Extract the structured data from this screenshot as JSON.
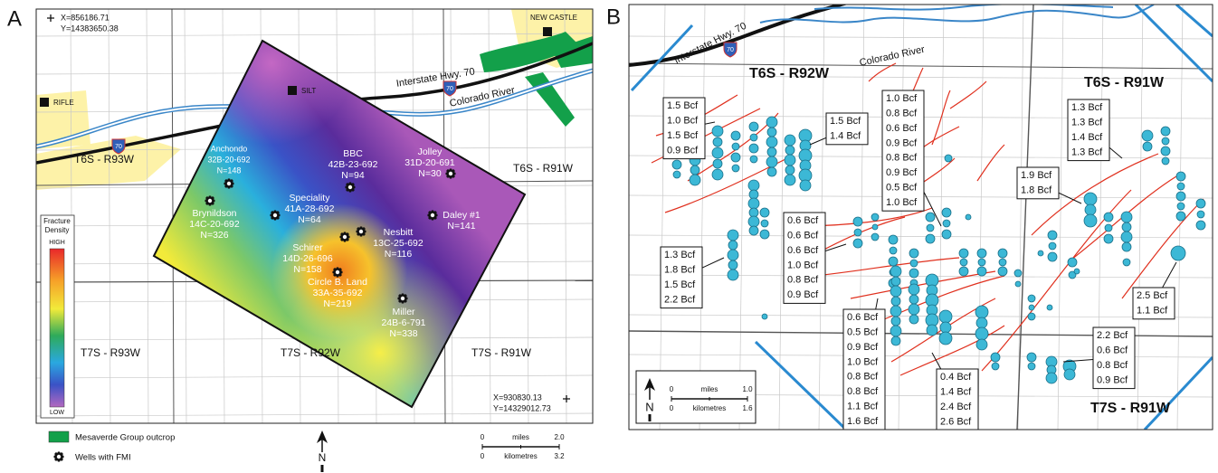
{
  "panel_a": {
    "label": "A",
    "coord_top": [
      "X=856186.71",
      "Y=14383650.38"
    ],
    "coord_bottom": [
      "X=930830.13",
      "Y=14329012.73"
    ],
    "towns": [
      "NEW CASTLE",
      "SILT",
      "RIFLE"
    ],
    "highway": "Interstate Hwy. 70",
    "shield": "70",
    "river": "Colorado River",
    "townships": [
      "T6S - R93W",
      "T6S - R91W",
      "T7S - R93W",
      "T7S - R92W",
      "T7S - R91W"
    ],
    "wells": [
      {
        "lines": [
          "Anchondo",
          "32B-20-692",
          "N=148"
        ]
      },
      {
        "lines": [
          "BBC",
          "42B-23-692",
          "N=94"
        ]
      },
      {
        "lines": [
          "Jolley",
          "31D-20-691",
          "N=30"
        ]
      },
      {
        "lines": [
          "Speciality",
          "41A-28-692",
          "N=64"
        ]
      },
      {
        "lines": [
          "Brynildson",
          "14C-20-692",
          "N=326"
        ]
      },
      {
        "lines": [
          "Daley #1",
          "N=141"
        ]
      },
      {
        "lines": [
          "Nesbitt",
          "13C-25-692",
          "N=116"
        ]
      },
      {
        "lines": [
          "Schirer",
          "14D-26-696",
          "N=158"
        ]
      },
      {
        "lines": [
          "Circle B. Land",
          "33A-35-692",
          "N=219"
        ]
      },
      {
        "lines": [
          "Miller",
          "24B-6-791",
          "N=338"
        ]
      }
    ],
    "density_legend": {
      "title": [
        "Fracture",
        "Density"
      ],
      "high": "HIGH",
      "low": "LOW"
    },
    "legend": [
      "Mesaverde Group outcrop",
      "Wells with FMI"
    ],
    "scale": {
      "miles": [
        "0",
        "miles",
        "2.0"
      ],
      "km": [
        "0",
        "kilometres",
        "3.2"
      ]
    },
    "north": "N"
  },
  "panel_b": {
    "label": "B",
    "highway": "Interstate Hwy. 70",
    "shield": "70",
    "river": "Colorado River",
    "townships": [
      "T6S - R92W",
      "T6S - R91W",
      "T7S - R91W"
    ],
    "boxes": [
      [
        "1.5 Bcf",
        "1.0 Bcf",
        "1.5 Bcf",
        "0.9 Bcf"
      ],
      [
        "1.5 Bcf",
        "1.4 Bcf"
      ],
      [
        "1.0 Bcf",
        "0.8 Bcf",
        "0.6 Bcf",
        "0.9 Bcf",
        "0.8 Bcf",
        "0.9 Bcf",
        "0.5 Bcf",
        "1.0 Bcf"
      ],
      [
        "1.3 Bcf",
        "1.3 Bcf",
        "1.4 Bcf",
        "1.3 Bcf"
      ],
      [
        "1.9 Bcf",
        "1.8 Bcf"
      ],
      [
        "0.6 Bcf",
        "0.6 Bcf",
        "0.6 Bcf",
        "1.0 Bcf",
        "0.8 Bcf",
        "0.9 Bcf"
      ],
      [
        "1.3 Bcf",
        "1.8 Bcf",
        "1.5 Bcf",
        "2.2 Bcf"
      ],
      [
        "2.5 Bcf",
        "1.1 Bcf"
      ],
      [
        "2.2 Bcf",
        "0.6 Bcf",
        "0.8 Bcf",
        "0.9 Bcf"
      ],
      [
        "0.6 Bcf",
        "0.5 Bcf",
        "0.9 Bcf",
        "1.0 Bcf",
        "0.8 Bcf",
        "0.8 Bcf",
        "1.1 Bcf",
        "1.6 Bcf"
      ],
      [
        "0.4 Bcf",
        "1.4 Bcf",
        "2.4 Bcf",
        "2.6 Bcf"
      ]
    ],
    "scale": {
      "miles": [
        "0",
        "miles",
        "1.0"
      ],
      "km": [
        "0",
        "kilometres",
        "1.6"
      ]
    },
    "north": "N"
  }
}
